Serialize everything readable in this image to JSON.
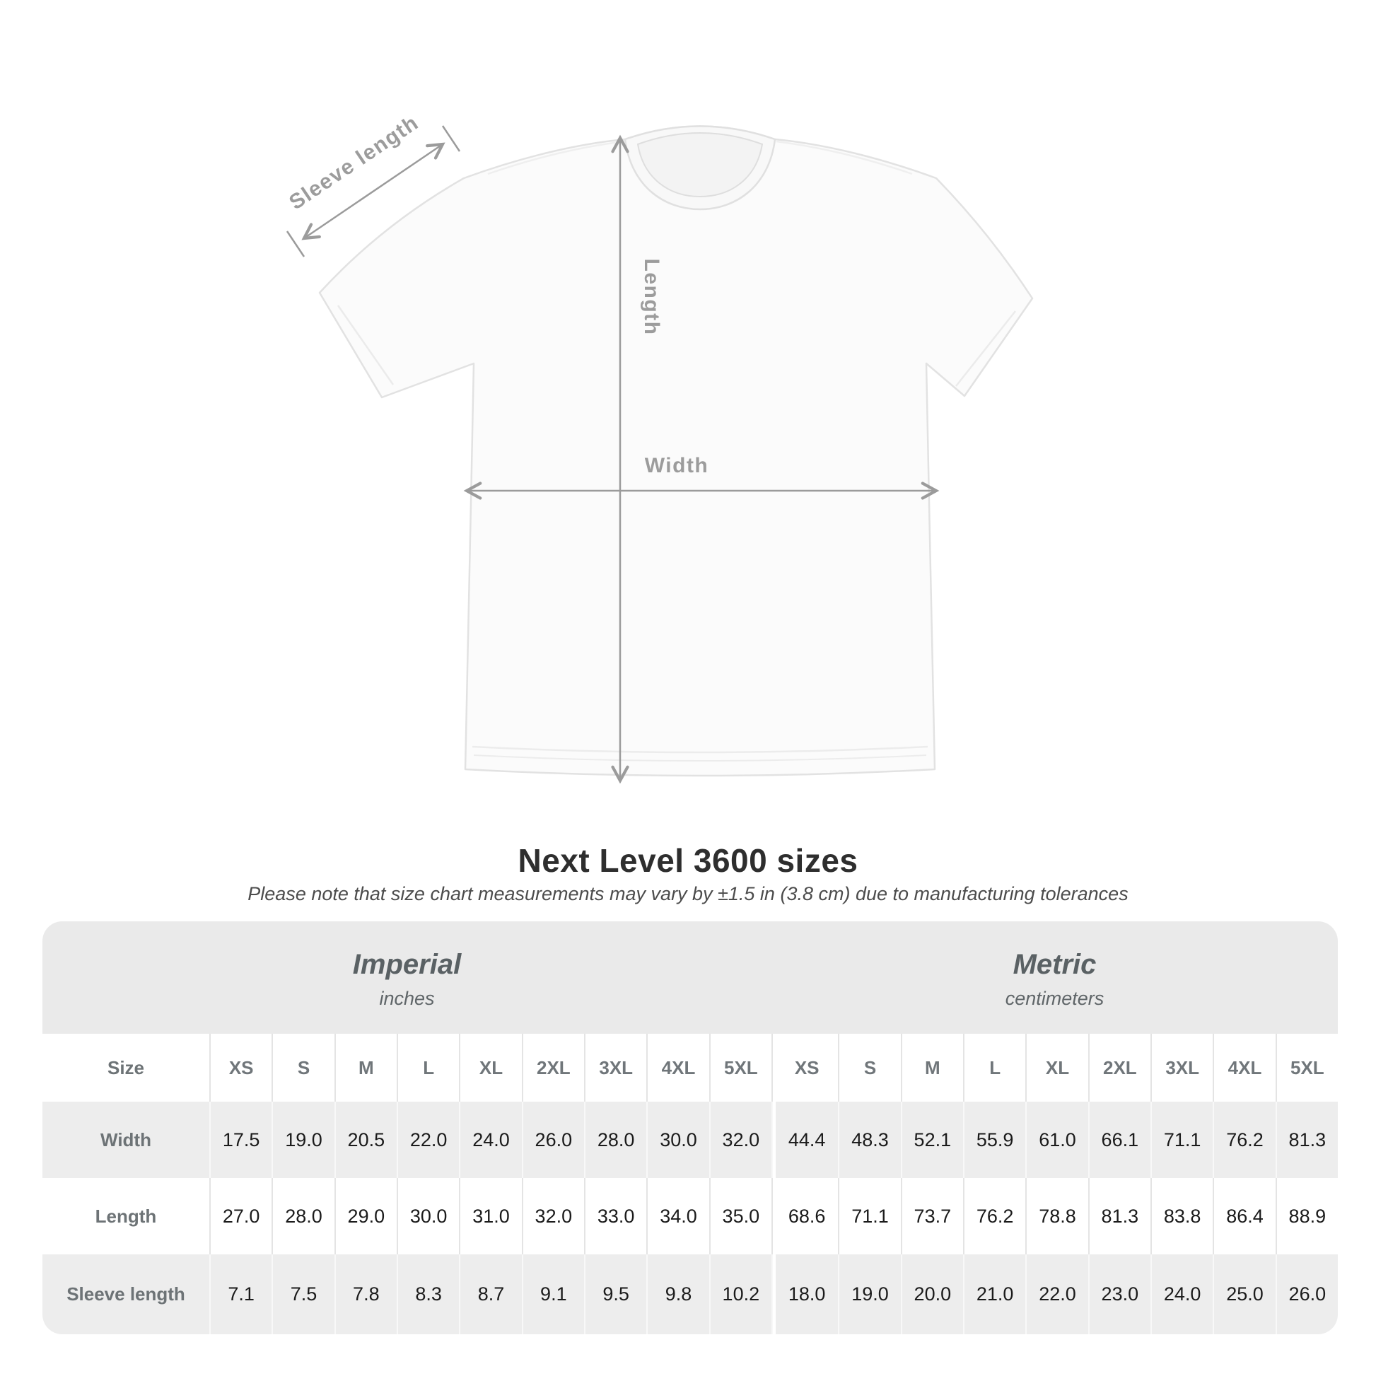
{
  "title": "Next Level 3600 sizes",
  "subtitle": "Please note that size chart measurements may vary by ±1.5 in (3.8 cm) due to manufacturing tolerances",
  "diagram": {
    "sleeve_length_label": "Sleeve length",
    "length_label": "Length",
    "width_label": "Width",
    "arrow_color": "#9b9b9b",
    "shirt_fill": "#fbfbfb",
    "shirt_outline": "#e2e2e2"
  },
  "size_table": {
    "size_header_label": "Size",
    "sizes": [
      "XS",
      "S",
      "M",
      "L",
      "XL",
      "2XL",
      "3XL",
      "4XL",
      "5XL"
    ],
    "unit_systems": [
      {
        "name": "Imperial",
        "unit": "inches"
      },
      {
        "name": "Metric",
        "unit": "centimeters"
      }
    ],
    "rows": [
      {
        "label": "Width",
        "imperial": [
          "17.5",
          "19.0",
          "20.5",
          "22.0",
          "24.0",
          "26.0",
          "28.0",
          "30.0",
          "32.0"
        ],
        "metric": [
          "44.4",
          "48.3",
          "52.1",
          "55.9",
          "61.0",
          "66.1",
          "71.1",
          "76.2",
          "81.3"
        ]
      },
      {
        "label": "Length",
        "imperial": [
          "27.0",
          "28.0",
          "29.0",
          "30.0",
          "31.0",
          "32.0",
          "33.0",
          "34.0",
          "35.0"
        ],
        "metric": [
          "68.6",
          "71.1",
          "73.7",
          "76.2",
          "78.8",
          "81.3",
          "83.8",
          "86.4",
          "88.9"
        ]
      },
      {
        "label": "Sleeve length",
        "imperial": [
          "7.1",
          "7.5",
          "7.8",
          "8.3",
          "8.7",
          "9.1",
          "9.5",
          "9.8",
          "10.2"
        ],
        "metric": [
          "18.0",
          "19.0",
          "20.0",
          "21.0",
          "22.0",
          "23.0",
          "24.0",
          "25.0",
          "26.0"
        ]
      }
    ]
  },
  "colors": {
    "header_band_bg": "#eaeaea",
    "gray_row_bg": "#ededed",
    "white_row_bg": "#ffffff",
    "label_text": "#6d7376",
    "value_text": "#1b1b1b",
    "title_text": "#2e2e2e"
  },
  "chart_data": {
    "type": "table",
    "title": "Next Level 3600 sizes",
    "note": "Please note that size chart measurements may vary by ±1.5 in (3.8 cm) due to manufacturing tolerances",
    "columns": [
      "XS",
      "S",
      "M",
      "L",
      "XL",
      "2XL",
      "3XL",
      "4XL",
      "5XL"
    ],
    "sections": [
      {
        "name": "Imperial",
        "unit": "inches",
        "rows": [
          {
            "label": "Width",
            "values": [
              17.5,
              19.0,
              20.5,
              22.0,
              24.0,
              26.0,
              28.0,
              30.0,
              32.0
            ]
          },
          {
            "label": "Length",
            "values": [
              27.0,
              28.0,
              29.0,
              30.0,
              31.0,
              32.0,
              33.0,
              34.0,
              35.0
            ]
          },
          {
            "label": "Sleeve length",
            "values": [
              7.1,
              7.5,
              7.8,
              8.3,
              8.7,
              9.1,
              9.5,
              9.8,
              10.2
            ]
          }
        ]
      },
      {
        "name": "Metric",
        "unit": "centimeters",
        "rows": [
          {
            "label": "Width",
            "values": [
              44.4,
              48.3,
              52.1,
              55.9,
              61.0,
              66.1,
              71.1,
              76.2,
              81.3
            ]
          },
          {
            "label": "Length",
            "values": [
              68.6,
              71.1,
              73.7,
              76.2,
              78.8,
              81.3,
              83.8,
              86.4,
              88.9
            ]
          },
          {
            "label": "Sleeve length",
            "values": [
              18.0,
              19.0,
              20.0,
              21.0,
              22.0,
              23.0,
              24.0,
              25.0,
              26.0
            ]
          }
        ]
      }
    ]
  }
}
